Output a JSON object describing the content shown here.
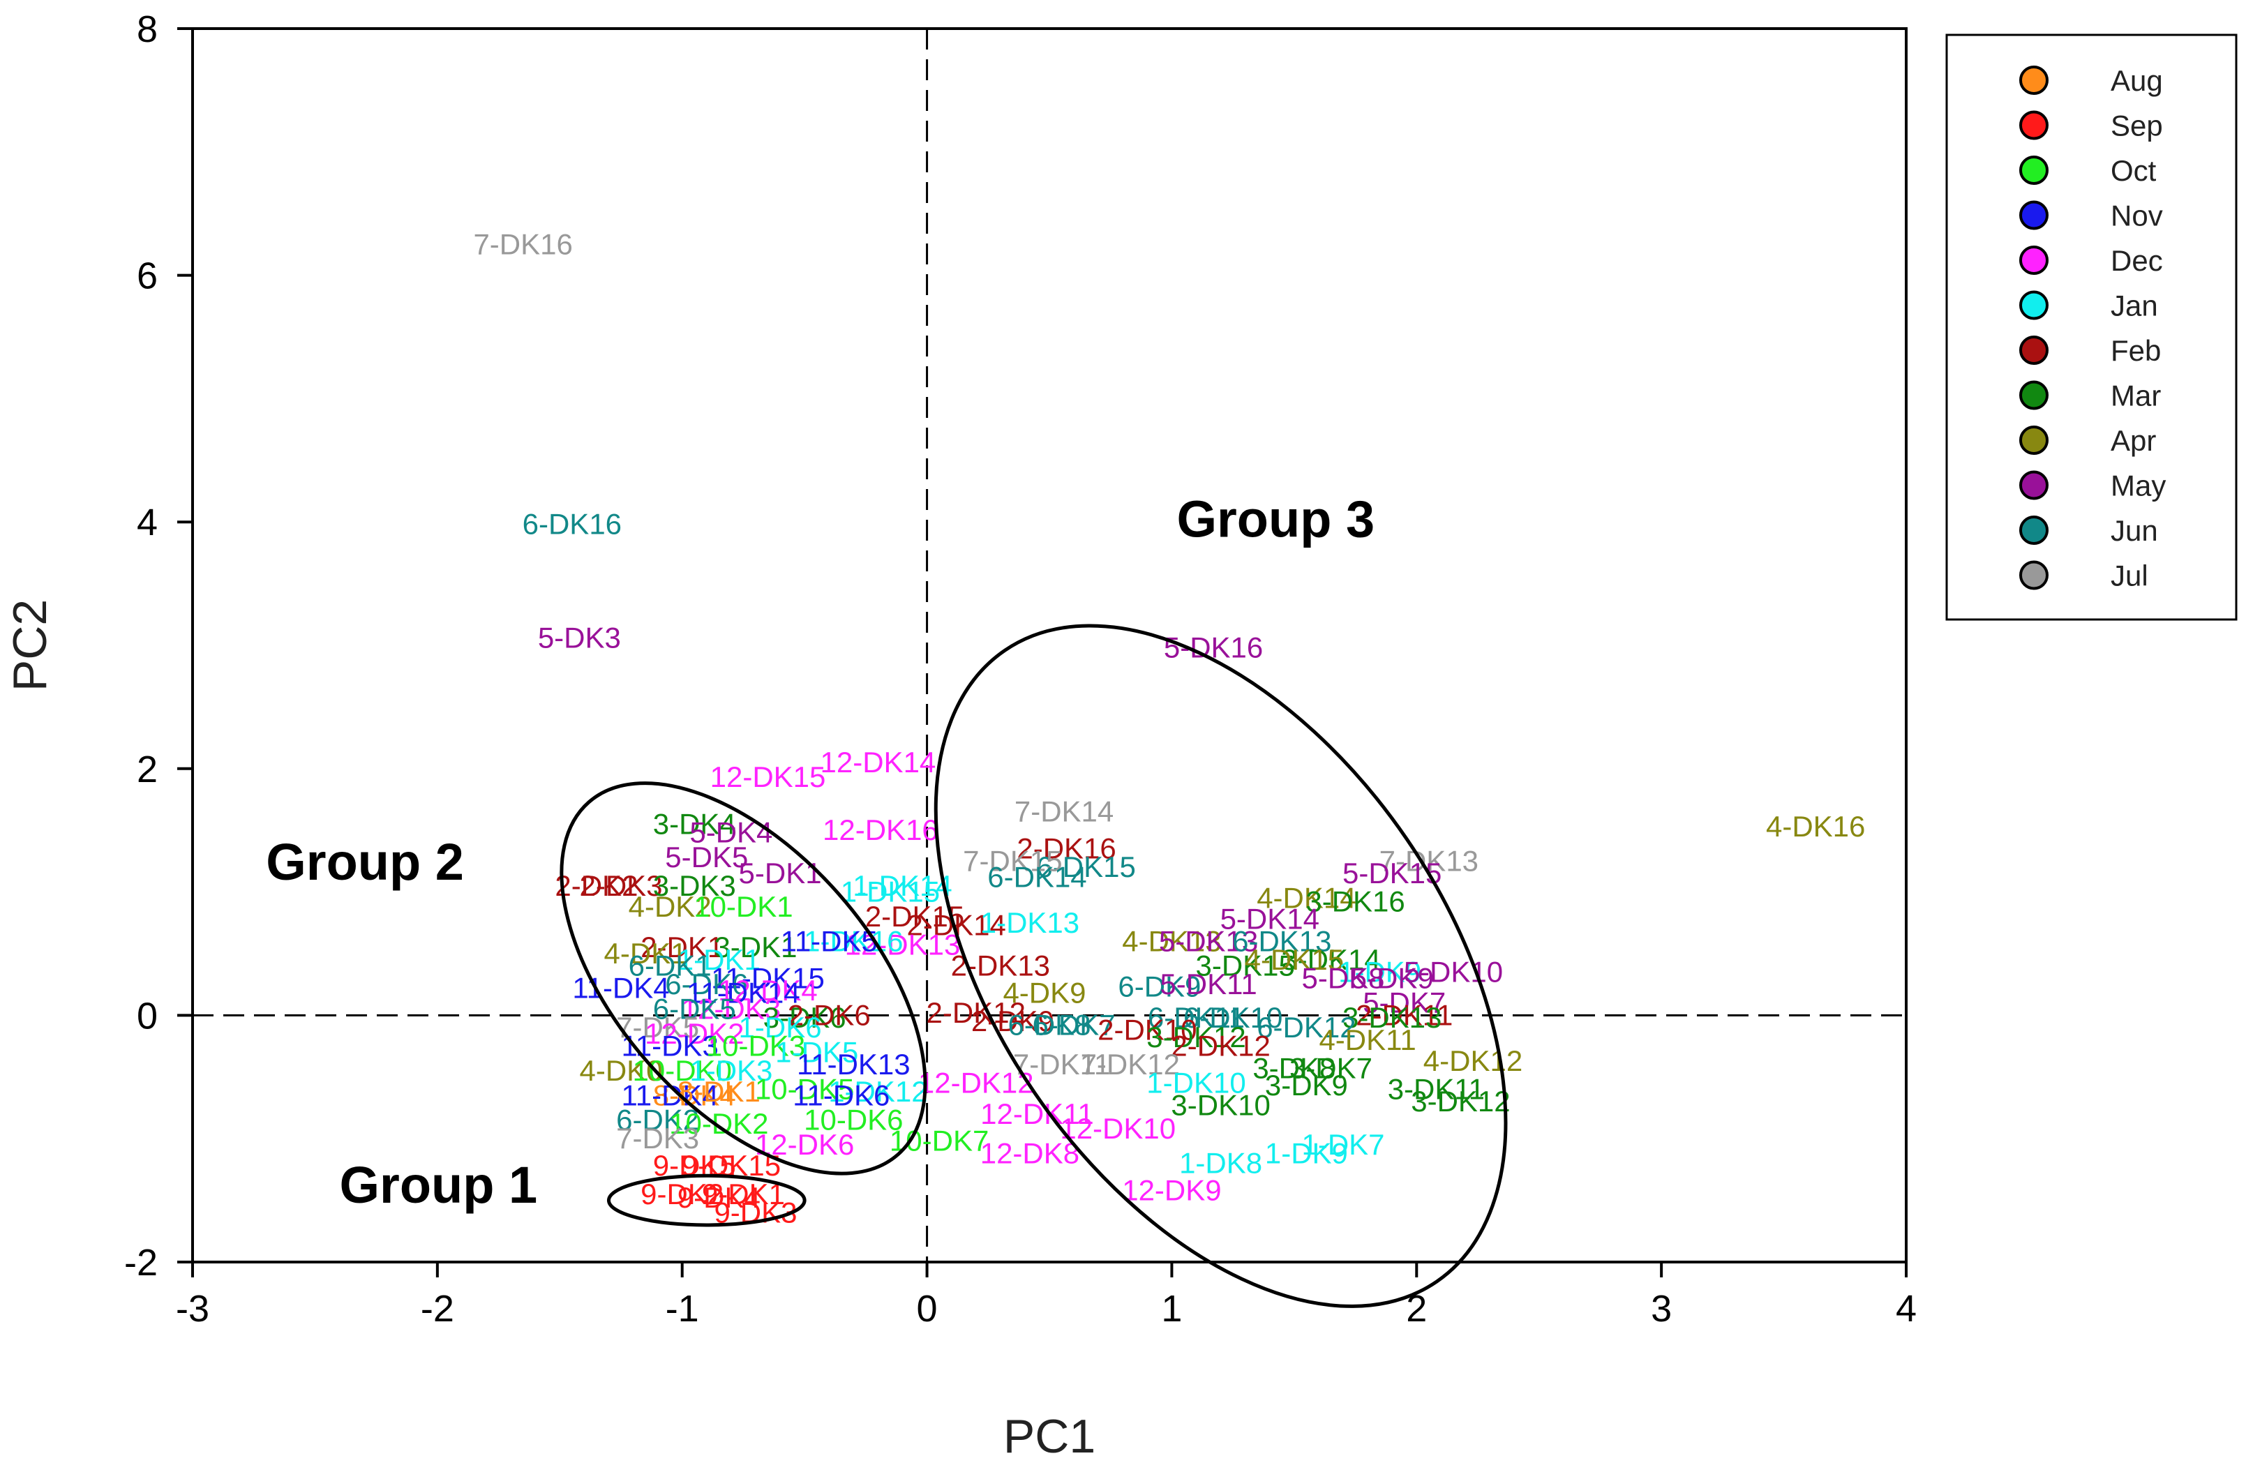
{
  "chart_data": {
    "type": "scatter",
    "xlabel": "PC1",
    "ylabel": "PC2",
    "xlim": [
      -3,
      4
    ],
    "ylim": [
      -2,
      8
    ],
    "x_ticks": [
      -3,
      -2,
      -1,
      0,
      1,
      2,
      3,
      4
    ],
    "y_ticks": [
      -2,
      0,
      2,
      4,
      6,
      8
    ],
    "grid": false,
    "reference_lines": {
      "x": 0,
      "y": 0,
      "style": "dashed"
    },
    "legend_position": "outside-right-top",
    "legend": [
      {
        "name": "Aug",
        "color": "#FF8C1A"
      },
      {
        "name": "Sep",
        "color": "#FF1A1A"
      },
      {
        "name": "Oct",
        "color": "#22EE22"
      },
      {
        "name": "Nov",
        "color": "#1A1AEE"
      },
      {
        "name": "Dec",
        "color": "#FF22FF"
      },
      {
        "name": "Jan",
        "color": "#11EEEE"
      },
      {
        "name": "Feb",
        "color": "#AA1111"
      },
      {
        "name": "Mar",
        "color": "#118811"
      },
      {
        "name": "Apr",
        "color": "#888811"
      },
      {
        "name": "May",
        "color": "#991199"
      },
      {
        "name": "Jun",
        "color": "#118888"
      },
      {
        "name": "Jul",
        "color": "#999999"
      }
    ],
    "groups": [
      {
        "label": "Group 1",
        "cx": -0.9,
        "cy": -1.5,
        "rx": 0.4,
        "ry": 0.2,
        "angle": 0,
        "label_x": -2.4,
        "label_y": -1.52
      },
      {
        "label": "Group 2",
        "cx": -0.75,
        "cy": 0.3,
        "rx": 0.52,
        "ry": 1.9,
        "angle": 0.72,
        "label_x": -2.7,
        "label_y": 1.1
      },
      {
        "label": "Group 3",
        "cx": 1.2,
        "cy": 0.4,
        "rx": 0.92,
        "ry": 3.1,
        "angle": 0.6,
        "label_x": 1.02,
        "label_y": 3.88
      }
    ],
    "points": [
      {
        "label": "7-DK16",
        "x": -1.65,
        "y": 6.25,
        "month": "Jul"
      },
      {
        "label": "6-DK16",
        "x": -1.45,
        "y": 3.98,
        "month": "Jun"
      },
      {
        "label": "5-DK3",
        "x": -1.42,
        "y": 3.06,
        "month": "May"
      },
      {
        "label": "5-DK16",
        "x": 1.17,
        "y": 2.98,
        "month": "May"
      },
      {
        "label": "12-DK14",
        "x": -0.2,
        "y": 2.05,
        "month": "Dec"
      },
      {
        "label": "12-DK15",
        "x": -0.65,
        "y": 1.93,
        "month": "Dec"
      },
      {
        "label": "12-DK16",
        "x": -0.19,
        "y": 1.5,
        "month": "Dec"
      },
      {
        "label": "7-DK14",
        "x": 0.56,
        "y": 1.65,
        "month": "Jul"
      },
      {
        "label": "2-DK16",
        "x": 0.57,
        "y": 1.35,
        "month": "Feb"
      },
      {
        "label": "4-DK16",
        "x": 3.63,
        "y": 1.53,
        "month": "Apr"
      },
      {
        "label": "7-DK13",
        "x": 2.05,
        "y": 1.25,
        "month": "Jul"
      },
      {
        "label": "5-DK15",
        "x": 1.9,
        "y": 1.15,
        "month": "May"
      },
      {
        "label": "6-DK15",
        "x": 0.65,
        "y": 1.2,
        "month": "Jun"
      },
      {
        "label": "7-DK15",
        "x": 0.35,
        "y": 1.25,
        "month": "Jul"
      },
      {
        "label": "6-DK14",
        "x": 0.45,
        "y": 1.12,
        "month": "Jun"
      },
      {
        "label": "1-DK14",
        "x": -0.1,
        "y": 1.05,
        "month": "Jan"
      },
      {
        "label": "1-DK15",
        "x": -0.15,
        "y": 1.0,
        "month": "Jan"
      },
      {
        "label": "4-DK14",
        "x": 1.55,
        "y": 0.95,
        "month": "Apr"
      },
      {
        "label": "3-DK16",
        "x": 1.75,
        "y": 0.92,
        "month": "Mar"
      },
      {
        "label": "3-DK4",
        "x": -0.95,
        "y": 1.55,
        "month": "Mar"
      },
      {
        "label": "5-DK4",
        "x": -0.8,
        "y": 1.48,
        "month": "May"
      },
      {
        "label": "5-DK5",
        "x": -0.9,
        "y": 1.28,
        "month": "May"
      },
      {
        "label": "5-DK1",
        "x": -0.6,
        "y": 1.15,
        "month": "May"
      },
      {
        "label": "2-DK3",
        "x": -1.25,
        "y": 1.05,
        "month": "Feb"
      },
      {
        "label": "2-DK2",
        "x": -1.35,
        "y": 1.05,
        "month": "Feb"
      },
      {
        "label": "3-DK3",
        "x": -0.95,
        "y": 1.05,
        "month": "Mar"
      },
      {
        "label": "4-DK2",
        "x": -1.05,
        "y": 0.88,
        "month": "Apr"
      },
      {
        "label": "10-DK1",
        "x": -0.75,
        "y": 0.88,
        "month": "Oct"
      },
      {
        "label": "2-DK15",
        "x": -0.05,
        "y": 0.8,
        "month": "Feb"
      },
      {
        "label": "2-DK14",
        "x": 0.12,
        "y": 0.73,
        "month": "Feb"
      },
      {
        "label": "1-DK13",
        "x": 0.42,
        "y": 0.75,
        "month": "Jan"
      },
      {
        "label": "12-DK13",
        "x": -0.1,
        "y": 0.57,
        "month": "Dec"
      },
      {
        "label": "1-DK16",
        "x": -0.3,
        "y": 0.6,
        "month": "Jan"
      },
      {
        "label": "5-DK14",
        "x": 1.4,
        "y": 0.78,
        "month": "May"
      },
      {
        "label": "4-DK13",
        "x": 1.0,
        "y": 0.6,
        "month": "Apr"
      },
      {
        "label": "5-DK13",
        "x": 1.15,
        "y": 0.6,
        "month": "May"
      },
      {
        "label": "6-DK13",
        "x": 1.45,
        "y": 0.6,
        "month": "Jun"
      },
      {
        "label": "3-DK14",
        "x": 1.65,
        "y": 0.45,
        "month": "Mar"
      },
      {
        "label": "3-DK15",
        "x": 1.3,
        "y": 0.4,
        "month": "Mar"
      },
      {
        "label": "4-DK15",
        "x": 1.5,
        "y": 0.45,
        "month": "Apr"
      },
      {
        "label": "1-DK9",
        "x": 1.85,
        "y": 0.35,
        "month": "Jan"
      },
      {
        "label": "5-DK10",
        "x": 2.15,
        "y": 0.35,
        "month": "May"
      },
      {
        "label": "5-DK9",
        "x": 1.9,
        "y": 0.3,
        "month": "May"
      },
      {
        "label": "5-DK8",
        "x": 1.7,
        "y": 0.3,
        "month": "May"
      },
      {
        "label": "5-DK7",
        "x": 1.95,
        "y": 0.1,
        "month": "May"
      },
      {
        "label": "2-DK13",
        "x": 0.3,
        "y": 0.4,
        "month": "Feb"
      },
      {
        "label": "4-DK9",
        "x": 0.48,
        "y": 0.18,
        "month": "Apr"
      },
      {
        "label": "6-DK9",
        "x": 0.95,
        "y": 0.23,
        "month": "Jun"
      },
      {
        "label": "5-DK11",
        "x": 1.15,
        "y": 0.25,
        "month": "May"
      },
      {
        "label": "2-DK11",
        "x": 1.95,
        "y": 0.0,
        "month": "Feb"
      },
      {
        "label": "3-DK13",
        "x": 1.9,
        "y": -0.02,
        "month": "Mar"
      },
      {
        "label": "6-DK11",
        "x": 1.1,
        "y": -0.02,
        "month": "Jun"
      },
      {
        "label": "6-DK10",
        "x": 1.25,
        "y": -0.02,
        "month": "Jun"
      },
      {
        "label": "2-DK12",
        "x": 0.2,
        "y": 0.02,
        "month": "Feb"
      },
      {
        "label": "2-DK9",
        "x": 0.35,
        "y": -0.05,
        "month": "Feb"
      },
      {
        "label": "6-DK8",
        "x": 0.5,
        "y": -0.08,
        "month": "Jun"
      },
      {
        "label": "6-DK7",
        "x": 0.6,
        "y": -0.08,
        "month": "Jun"
      },
      {
        "label": "6-DK12",
        "x": 1.55,
        "y": -0.1,
        "month": "Jun"
      },
      {
        "label": "2-DK10",
        "x": 0.9,
        "y": -0.12,
        "month": "Feb"
      },
      {
        "label": "4-DK11",
        "x": 1.8,
        "y": -0.2,
        "month": "Apr"
      },
      {
        "label": "3-DK12",
        "x": 1.1,
        "y": -0.18,
        "month": "Mar"
      },
      {
        "label": "2-DK12b",
        "x": 1.2,
        "y": -0.25,
        "month": "Feb",
        "text": "2-DK12"
      },
      {
        "label": "7-DK11",
        "x": 0.55,
        "y": -0.4,
        "month": "Jul"
      },
      {
        "label": "7-DK12",
        "x": 0.83,
        "y": -0.4,
        "month": "Jul"
      },
      {
        "label": "4-DK12",
        "x": 2.23,
        "y": -0.37,
        "month": "Apr"
      },
      {
        "label": "3-DK8",
        "x": 1.5,
        "y": -0.43,
        "month": "Mar"
      },
      {
        "label": "3-DK7",
        "x": 1.65,
        "y": -0.43,
        "month": "Mar"
      },
      {
        "label": "3-DK9",
        "x": 1.55,
        "y": -0.57,
        "month": "Mar"
      },
      {
        "label": "1-DK10",
        "x": 1.1,
        "y": -0.55,
        "month": "Jan"
      },
      {
        "label": "3-DK11",
        "x": 2.08,
        "y": -0.6,
        "month": "Mar"
      },
      {
        "label": "3-DK12b",
        "x": 2.18,
        "y": -0.7,
        "month": "Mar",
        "text": "3-DK12"
      },
      {
        "label": "3-DK10",
        "x": 1.2,
        "y": -0.73,
        "month": "Mar"
      },
      {
        "label": "12-DK11",
        "x": 0.45,
        "y": -0.8,
        "month": "Dec"
      },
      {
        "label": "12-DK10",
        "x": 0.78,
        "y": -0.92,
        "month": "Dec"
      },
      {
        "label": "12-DK8",
        "x": 0.42,
        "y": -1.12,
        "month": "Dec"
      },
      {
        "label": "12-DK9",
        "x": 1.0,
        "y": -1.42,
        "month": "Dec"
      },
      {
        "label": "1-DK8",
        "x": 1.2,
        "y": -1.2,
        "month": "Jan"
      },
      {
        "label": "1-DK9b",
        "x": 1.55,
        "y": -1.12,
        "month": "Jan",
        "text": "1-DK9"
      },
      {
        "label": "1-DK7",
        "x": 1.7,
        "y": -1.05,
        "month": "Jan"
      },
      {
        "label": "10-DK7",
        "x": 0.05,
        "y": -1.02,
        "month": "Oct"
      },
      {
        "label": "12-DK6",
        "x": -0.5,
        "y": -1.05,
        "month": "Dec"
      },
      {
        "label": "12-DK12",
        "x": 0.2,
        "y": -0.55,
        "month": "Dec"
      },
      {
        "label": "2-DK1",
        "x": -1.0,
        "y": 0.55,
        "month": "Feb"
      },
      {
        "label": "3-DK1",
        "x": -0.7,
        "y": 0.55,
        "month": "Mar"
      },
      {
        "label": "1-DK1",
        "x": -0.85,
        "y": 0.45,
        "month": "Jan"
      },
      {
        "label": "4-DK1",
        "x": -1.15,
        "y": 0.5,
        "month": "Apr"
      },
      {
        "label": "6-DK1",
        "x": -1.05,
        "y": 0.4,
        "month": "Jun"
      },
      {
        "label": "11-DK5",
        "x": -0.4,
        "y": 0.6,
        "month": "Nov"
      },
      {
        "label": "11-DK4",
        "x": -1.25,
        "y": 0.22,
        "month": "Nov"
      },
      {
        "label": "11-DK15",
        "x": -0.65,
        "y": 0.3,
        "month": "Nov"
      },
      {
        "label": "6-DK6",
        "x": -0.9,
        "y": 0.25,
        "month": "Jun"
      },
      {
        "label": "12-DK4",
        "x": -0.65,
        "y": 0.2,
        "month": "Dec"
      },
      {
        "label": "11-DK14",
        "x": -0.75,
        "y": 0.18,
        "month": "Nov"
      },
      {
        "label": "12-DK3",
        "x": -0.8,
        "y": 0.05,
        "month": "Dec"
      },
      {
        "label": "6-DK5",
        "x": -0.95,
        "y": 0.05,
        "month": "Jun"
      },
      {
        "label": "3-DK6",
        "x": -0.5,
        "y": -0.02,
        "month": "Mar"
      },
      {
        "label": "2-DK6",
        "x": -0.4,
        "y": 0.0,
        "month": "Feb"
      },
      {
        "label": "1-DK6",
        "x": -0.6,
        "y": -0.1,
        "month": "Jan"
      },
      {
        "label": "7-DK5",
        "x": -1.1,
        "y": -0.1,
        "month": "Jul"
      },
      {
        "label": "12-DK2",
        "x": -0.95,
        "y": -0.15,
        "month": "Dec"
      },
      {
        "label": "11-DK3",
        "x": -1.05,
        "y": -0.25,
        "month": "Nov"
      },
      {
        "label": "10-DK3",
        "x": -0.7,
        "y": -0.25,
        "month": "Oct"
      },
      {
        "label": "1-DK5",
        "x": -0.45,
        "y": -0.3,
        "month": "Jan"
      },
      {
        "label": "4-DK0",
        "x": -1.25,
        "y": -0.45,
        "month": "Apr"
      },
      {
        "label": "10-DK0",
        "x": -1.0,
        "y": -0.45,
        "month": "Oct"
      },
      {
        "label": "1-DK3",
        "x": -0.8,
        "y": -0.45,
        "month": "Jan"
      },
      {
        "label": "11-DK13",
        "x": -0.3,
        "y": -0.4,
        "month": "Nov"
      },
      {
        "label": "8-DK4",
        "x": -0.95,
        "y": -0.65,
        "month": "Aug"
      },
      {
        "label": "11-DK4b",
        "x": -1.05,
        "y": -0.65,
        "month": "Nov",
        "text": "11-DK4"
      },
      {
        "label": "8-DK1",
        "x": -0.85,
        "y": -0.62,
        "month": "Aug"
      },
      {
        "label": "10-DK5",
        "x": -0.5,
        "y": -0.6,
        "month": "Oct"
      },
      {
        "label": "1-DK12",
        "x": -0.2,
        "y": -0.62,
        "month": "Jan"
      },
      {
        "label": "11-DK6",
        "x": -0.35,
        "y": -0.65,
        "month": "Nov"
      },
      {
        "label": "6-DK2",
        "x": -1.1,
        "y": -0.85,
        "month": "Jun"
      },
      {
        "label": "10-DK2",
        "x": -0.85,
        "y": -0.88,
        "month": "Oct"
      },
      {
        "label": "7-DK3",
        "x": -1.1,
        "y": -1.0,
        "month": "Jul"
      },
      {
        "label": "10-DK6",
        "x": -0.3,
        "y": -0.85,
        "month": "Oct"
      },
      {
        "label": "9-DK5",
        "x": -0.95,
        "y": -1.22,
        "month": "Sep"
      },
      {
        "label": "9-DK15",
        "x": -0.8,
        "y": -1.22,
        "month": "Sep"
      },
      {
        "label": "9-DK2",
        "x": -1.0,
        "y": -1.45,
        "month": "Sep"
      },
      {
        "label": "9-DK4",
        "x": -0.85,
        "y": -1.48,
        "month": "Sep"
      },
      {
        "label": "9-DK1",
        "x": -0.75,
        "y": -1.45,
        "month": "Sep"
      },
      {
        "label": "9-DK3",
        "x": -0.7,
        "y": -1.6,
        "month": "Sep"
      }
    ]
  }
}
